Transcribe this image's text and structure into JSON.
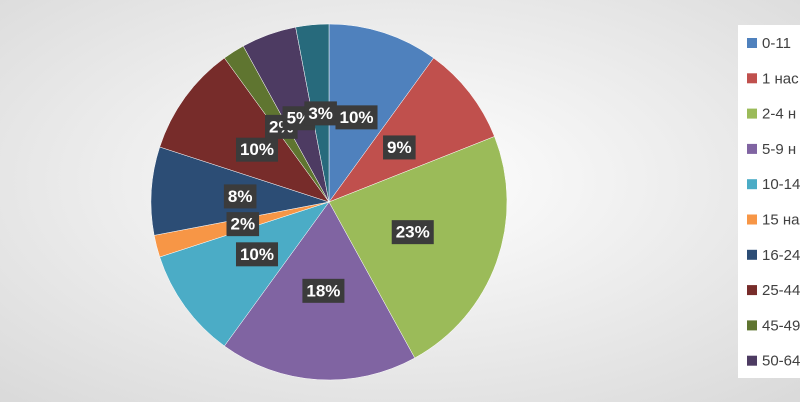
{
  "chart_data": {
    "type": "pie",
    "categories": [
      "0-11",
      "1 нас",
      "2-4 н",
      "5-9 н",
      "10-14",
      "15 на",
      "16-24",
      "25-44",
      "45-49",
      "50-64",
      null
    ],
    "values": [
      10,
      9,
      23,
      18,
      10,
      2,
      8,
      10,
      2,
      5,
      3
    ],
    "value_labels": [
      "10%",
      "9%",
      "23%",
      "18%",
      "10%",
      "2%",
      "8%",
      "10%",
      "2%",
      "5%",
      "3%"
    ],
    "colors": [
      "#4f81bd",
      "#c0504d",
      "#9bbb59",
      "#8064a2",
      "#4bacc6",
      "#f79646",
      "#2c4d75",
      "#772c2a",
      "#5f7530",
      "#4d3b62",
      "#276a7c"
    ]
  }
}
